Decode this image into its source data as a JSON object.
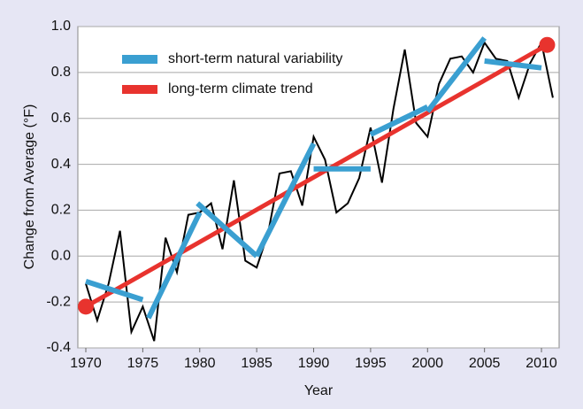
{
  "chart_data": {
    "type": "line",
    "xlabel": "Year",
    "ylabel": "Change from Average (°F)",
    "xlim": [
      1969.3,
      2011.55
    ],
    "ylim": [
      -0.4,
      1.0
    ],
    "xticks": [
      1970,
      1975,
      1980,
      1985,
      1990,
      1995,
      2000,
      2005,
      2010
    ],
    "yticks": [
      {
        "value": 1.0,
        "label": "1.0"
      },
      0.8,
      0.6,
      0.4,
      0.2,
      {
        "value": 0.0,
        "label": "0.0"
      },
      -0.2,
      -0.4
    ],
    "grid": true,
    "legend": "upper left",
    "annual": {
      "color": "#000000",
      "x": [
        1970,
        1971,
        1972,
        1973,
        1974,
        1975,
        1976,
        1977,
        1978,
        1979,
        1980,
        1981,
        1982,
        1983,
        1984,
        1985,
        1986,
        1987,
        1988,
        1989,
        1990,
        1991,
        1992,
        1993,
        1994,
        1995,
        1996,
        1997,
        1998,
        1999,
        2000,
        2001,
        2002,
        2003,
        2004,
        2005,
        2006,
        2007,
        2008,
        2009,
        2010,
        2011
      ],
      "values": [
        -0.12,
        -0.28,
        -0.12,
        0.11,
        -0.33,
        -0.22,
        -0.37,
        0.08,
        -0.07,
        0.18,
        0.19,
        0.23,
        0.03,
        0.33,
        -0.02,
        -0.05,
        0.1,
        0.36,
        0.37,
        0.22,
        0.52,
        0.42,
        0.19,
        0.23,
        0.34,
        0.56,
        0.32,
        0.64,
        0.9,
        0.58,
        0.52,
        0.75,
        0.86,
        0.87,
        0.8,
        0.93,
        0.86,
        0.85,
        0.69,
        0.84,
        0.93,
        0.69
      ]
    },
    "series": [
      {
        "name": "short-term natural variability",
        "color": "#3a9fd1",
        "segments": [
          {
            "x": [
              1970,
              1975
            ],
            "values": [
              -0.11,
              -0.19
            ]
          },
          {
            "x": [
              1975.5,
              1980
            ],
            "values": [
              -0.27,
              0.19
            ]
          },
          {
            "x": [
              1979.8,
              1985
            ],
            "values": [
              0.23,
              0.0
            ]
          },
          {
            "x": [
              1985,
              1990
            ],
            "values": [
              0.0,
              0.49
            ]
          },
          {
            "x": [
              1990,
              1995
            ],
            "values": [
              0.38,
              0.38
            ]
          },
          {
            "x": [
              1995,
              2000
            ],
            "values": [
              0.53,
              0.65
            ]
          },
          {
            "x": [
              2000,
              2005
            ],
            "values": [
              0.63,
              0.95
            ]
          },
          {
            "x": [
              2005,
              2010
            ],
            "values": [
              0.85,
              0.82
            ]
          }
        ]
      },
      {
        "name": "long-term climate trend",
        "color": "#e8332e",
        "x": [
          1970,
          2010.5
        ],
        "values": [
          -0.22,
          0.92
        ]
      }
    ]
  }
}
